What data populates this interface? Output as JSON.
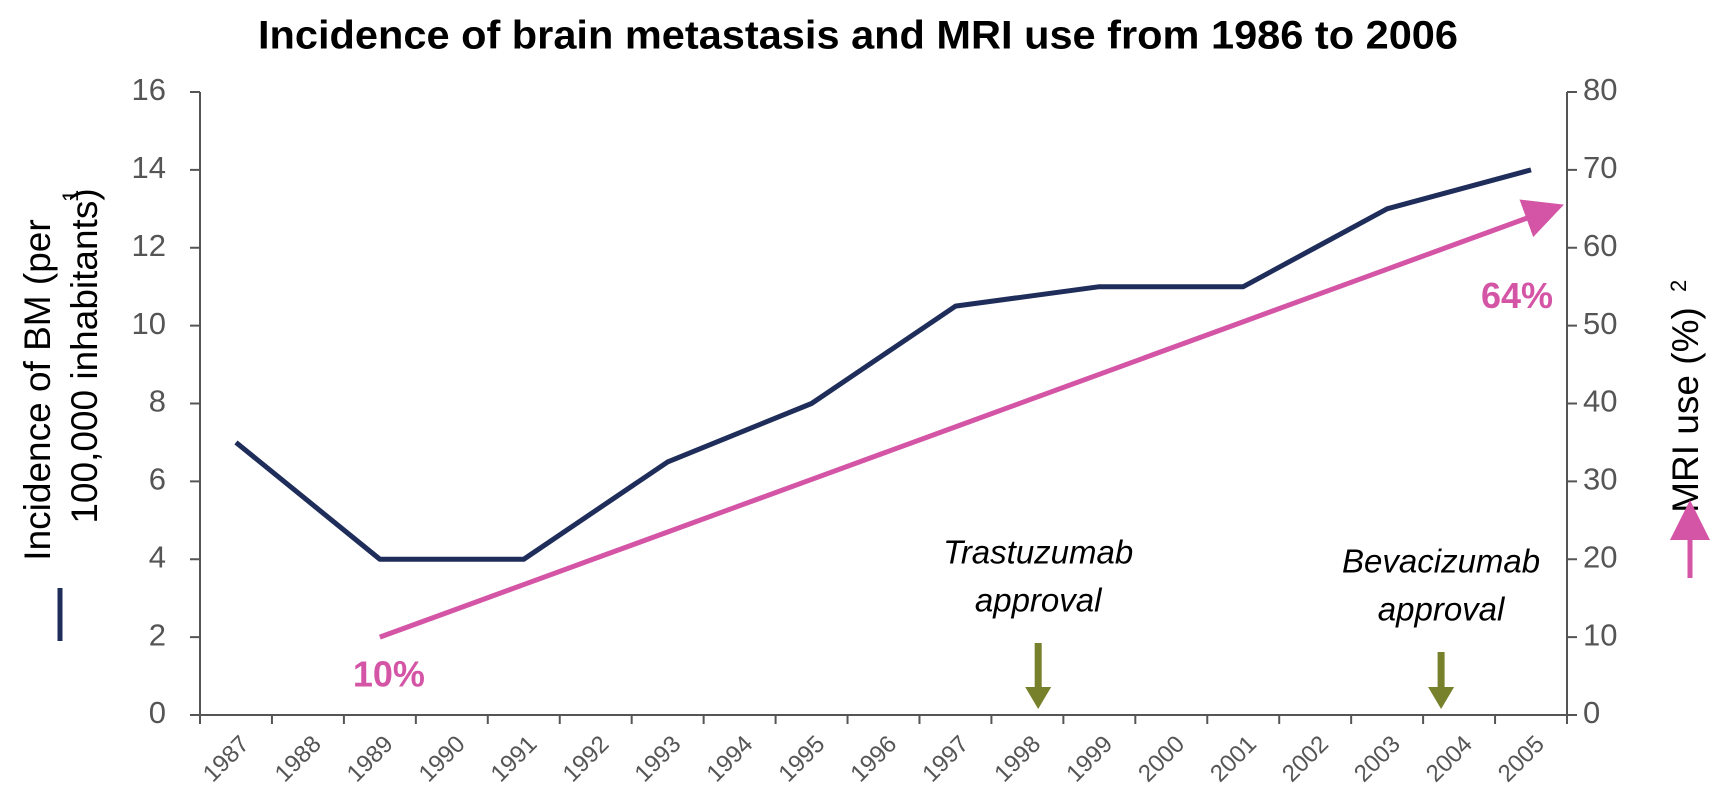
{
  "chart_data": {
    "type": "line",
    "title": "Incidence of brain metastasis and MRI use from 1986 to 2006",
    "y_label": [
      "Incidence of BM (per",
      "100,000 inhabitants)"
    ],
    "y_label_note": "1",
    "y2_label": "MRI use (%)",
    "y2_label_note": "2",
    "categories": [
      "1987",
      "1988",
      "1989",
      "1990",
      "1991",
      "1992",
      "1993",
      "1994",
      "1995",
      "1996",
      "1997",
      "1998",
      "1999",
      "2000",
      "2001",
      "2002",
      "2003",
      "2004",
      "2005"
    ],
    "series": [
      {
        "name": "Incidence of BM",
        "color": "#1f2d5a",
        "values": [
          7,
          5.5,
          4,
          4,
          4,
          5.25,
          6.5,
          7.25,
          8,
          9.25,
          10.5,
          10.75,
          11,
          11,
          11,
          12,
          13,
          13.5,
          14
        ]
      },
      {
        "name": "MRI use",
        "color": "#d455a5",
        "axis": "y2",
        "values": [
          null,
          null,
          10,
          13.375,
          16.75,
          20.125,
          23.5,
          26.875,
          30.25,
          33.625,
          37,
          40.375,
          43.75,
          47.125,
          50.5,
          53.875,
          57.25,
          60.625,
          64
        ],
        "value_labels": [
          null,
          null,
          "10%",
          null,
          null,
          null,
          null,
          null,
          null,
          null,
          null,
          null,
          null,
          null,
          null,
          null,
          null,
          null,
          "64%"
        ]
      }
    ],
    "ylim": [
      0,
      16
    ],
    "yticks": [
      0,
      2,
      4,
      6,
      8,
      10,
      12,
      14,
      16
    ],
    "y2lim": [
      0,
      80
    ],
    "y2ticks": [
      0,
      10,
      20,
      30,
      40,
      50,
      60,
      70,
      80
    ],
    "annotations": [
      {
        "lines": [
          "Trastuzumab",
          "approval"
        ],
        "color": "#77802a"
      },
      {
        "lines": [
          "Bevacizumab",
          "approval"
        ],
        "color": "#77802a"
      }
    ]
  }
}
